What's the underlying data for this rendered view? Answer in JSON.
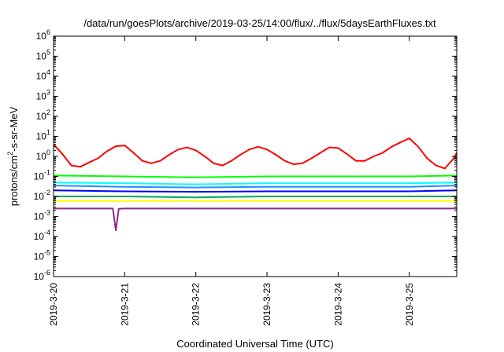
{
  "chart_data": {
    "type": "line",
    "title": "/data/run/goesPlots/archive/2019-03-25/14:00/flux/../flux/5daysEarthFluxes.txt",
    "xlabel": "Coordinated Universal Time (UTC)",
    "ylabel": {
      "base": "protons/cm",
      "sup": "2",
      "rest": "-s-sr-MeV"
    },
    "y_scale": "log",
    "ylim": [
      1e-06,
      1000000.0
    ],
    "y_ticks": [
      {
        "value": 1e-06,
        "base": "10",
        "exp": "-6"
      },
      {
        "value": 1e-05,
        "base": "10",
        "exp": "-5"
      },
      {
        "value": 0.0001,
        "base": "10",
        "exp": "-4"
      },
      {
        "value": 0.001,
        "base": "10",
        "exp": "-3"
      },
      {
        "value": 0.01,
        "base": "10",
        "exp": "-2"
      },
      {
        "value": 0.1,
        "base": "10",
        "exp": "-1"
      },
      {
        "value": 1,
        "base": "10",
        "exp": "0"
      },
      {
        "value": 10.0,
        "base": "10",
        "exp": "1"
      },
      {
        "value": 100.0,
        "base": "10",
        "exp": "2"
      },
      {
        "value": 1000.0,
        "base": "10",
        "exp": "3"
      },
      {
        "value": 10000.0,
        "base": "10",
        "exp": "4"
      },
      {
        "value": 100000.0,
        "base": "10",
        "exp": "5"
      },
      {
        "value": 1000000.0,
        "base": "10",
        "exp": "6"
      }
    ],
    "xlim": [
      "2019-03-20 00:00",
      "2019-03-25 16:00"
    ],
    "x_ticks": [
      {
        "value": "2019-03-20 00:00",
        "label": "2019-3-20"
      },
      {
        "value": "2019-03-21 00:00",
        "label": "2019-3-21"
      },
      {
        "value": "2019-03-22 00:00",
        "label": "2019-3-22"
      },
      {
        "value": "2019-03-23 00:00",
        "label": "2019-3-23"
      },
      {
        "value": "2019-03-24 00:00",
        "label": "2019-3-24"
      },
      {
        "value": "2019-03-25 00:00",
        "label": "2019-3-25"
      }
    ],
    "grid": false,
    "legend": "none",
    "series": [
      {
        "color": "#ff0000",
        "x": [
          "2019-03-20 00:00",
          "2019-03-20 03:00",
          "2019-03-20 06:00",
          "2019-03-20 09:00",
          "2019-03-20 12:00",
          "2019-03-20 15:00",
          "2019-03-20 18:00",
          "2019-03-20 21:00",
          "2019-03-21 00:00",
          "2019-03-21 03:00",
          "2019-03-21 06:00",
          "2019-03-21 09:00",
          "2019-03-21 12:00",
          "2019-03-21 15:00",
          "2019-03-21 18:00",
          "2019-03-21 21:00",
          "2019-03-22 00:00",
          "2019-03-22 03:00",
          "2019-03-22 06:00",
          "2019-03-22 09:00",
          "2019-03-22 12:00",
          "2019-03-22 15:00",
          "2019-03-22 18:00",
          "2019-03-22 21:00",
          "2019-03-23 00:00",
          "2019-03-23 03:00",
          "2019-03-23 06:00",
          "2019-03-23 09:00",
          "2019-03-23 12:00",
          "2019-03-23 15:00",
          "2019-03-23 18:00",
          "2019-03-23 21:00",
          "2019-03-24 00:00",
          "2019-03-24 03:00",
          "2019-03-24 06:00",
          "2019-03-24 09:00",
          "2019-03-24 12:00",
          "2019-03-24 15:00",
          "2019-03-24 18:00",
          "2019-03-24 21:00",
          "2019-03-25 00:00",
          "2019-03-25 03:00",
          "2019-03-25 06:00",
          "2019-03-25 09:00",
          "2019-03-25 12:00",
          "2019-03-25 15:00",
          "2019-03-25 16:00"
        ],
        "y": [
          4.0,
          1.3,
          0.35,
          0.3,
          0.5,
          0.8,
          1.8,
          3.2,
          3.5,
          1.5,
          0.6,
          0.45,
          0.6,
          1.2,
          2.2,
          2.8,
          2.0,
          1.0,
          0.45,
          0.35,
          0.6,
          1.2,
          2.2,
          3.0,
          2.2,
          1.2,
          0.6,
          0.4,
          0.45,
          0.8,
          1.5,
          2.8,
          2.6,
          1.3,
          0.6,
          0.6,
          1.0,
          1.5,
          3.0,
          5.0,
          8.0,
          3.0,
          0.8,
          0.35,
          0.25,
          0.8,
          1.5
        ]
      },
      {
        "color": "#00ff00",
        "x": [
          "2019-03-20 00:00",
          "2019-03-21 00:00",
          "2019-03-22 00:00",
          "2019-03-23 00:00",
          "2019-03-24 00:00",
          "2019-03-25 00:00",
          "2019-03-25 16:00"
        ],
        "y": [
          0.11,
          0.1,
          0.09,
          0.1,
          0.1,
          0.1,
          0.11
        ]
      },
      {
        "color": "#00ffff",
        "x": [
          "2019-03-20 00:00",
          "2019-03-21 00:00",
          "2019-03-22 00:00",
          "2019-03-23 00:00",
          "2019-03-24 00:00",
          "2019-03-25 00:00",
          "2019-03-25 16:00"
        ],
        "y": [
          0.05,
          0.045,
          0.04,
          0.045,
          0.045,
          0.045,
          0.05
        ]
      },
      {
        "color": "#1e90ff",
        "x": [
          "2019-03-20 00:00",
          "2019-03-21 00:00",
          "2019-03-22 00:00",
          "2019-03-23 00:00",
          "2019-03-24 00:00",
          "2019-03-25 00:00",
          "2019-03-25 16:00"
        ],
        "y": [
          0.035,
          0.03,
          0.028,
          0.03,
          0.03,
          0.03,
          0.035
        ]
      },
      {
        "color": "#0000ff",
        "x": [
          "2019-03-20 00:00",
          "2019-03-21 00:00",
          "2019-03-22 00:00",
          "2019-03-23 00:00",
          "2019-03-24 00:00",
          "2019-03-25 00:00",
          "2019-03-25 16:00"
        ],
        "y": [
          0.02,
          0.018,
          0.017,
          0.018,
          0.018,
          0.018,
          0.02
        ]
      },
      {
        "color": "#00aa55",
        "x": [
          "2019-03-20 00:00",
          "2019-03-21 00:00",
          "2019-03-22 00:00",
          "2019-03-23 00:00",
          "2019-03-24 00:00",
          "2019-03-25 00:00",
          "2019-03-25 16:00"
        ],
        "y": [
          0.01,
          0.01,
          0.009,
          0.01,
          0.01,
          0.01,
          0.01
        ]
      },
      {
        "color": "#ffff00",
        "x": [
          "2019-03-20 00:00",
          "2019-03-21 00:00",
          "2019-03-22 00:00",
          "2019-03-23 00:00",
          "2019-03-24 00:00",
          "2019-03-25 00:00",
          "2019-03-25 16:00"
        ],
        "y": [
          0.006,
          0.006,
          0.006,
          0.006,
          0.006,
          0.006,
          0.006
        ]
      },
      {
        "color": "#8b2b8b",
        "x": [
          "2019-03-20 00:00",
          "2019-03-20 20:00",
          "2019-03-20 21:00",
          "2019-03-20 22:00",
          "2019-03-21 00:00",
          "2019-03-22 00:00",
          "2019-03-23 00:00",
          "2019-03-24 00:00",
          "2019-03-25 00:00",
          "2019-03-25 16:00"
        ],
        "y": [
          0.0025,
          0.0025,
          0.0002,
          0.0024,
          0.0025,
          0.0025,
          0.0025,
          0.0025,
          0.0025,
          0.0025
        ]
      }
    ]
  }
}
